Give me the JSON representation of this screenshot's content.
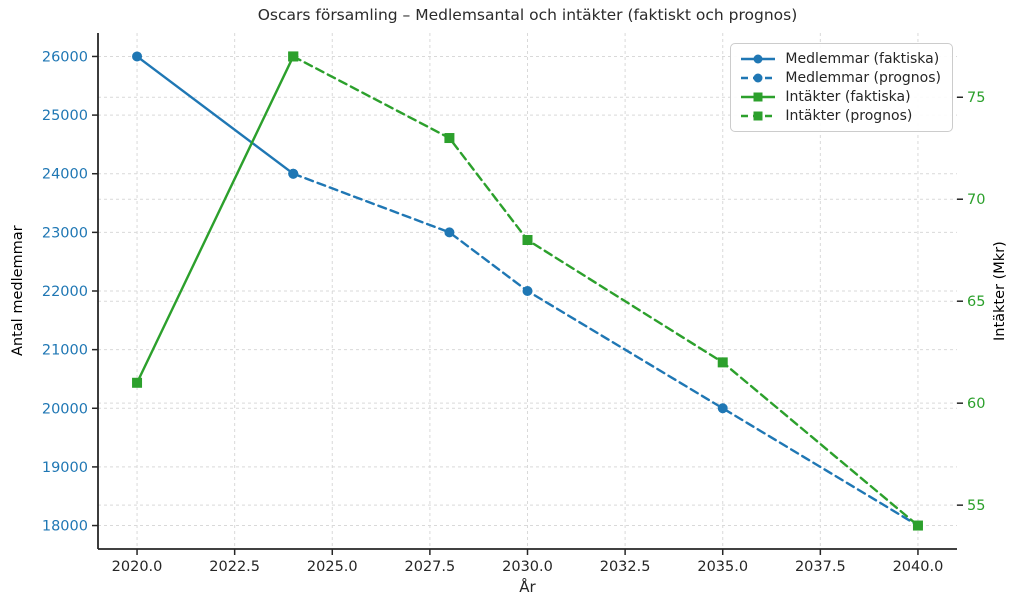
{
  "chart_data": {
    "type": "line",
    "title": "Oscars församling – Medlemsantal och intäkter (faktiskt och prognos)",
    "xlabel": "År",
    "ylabel_left": "Antal medlemmar",
    "ylabel_right": "Intäkter (Mkr)",
    "xlim": [
      2019,
      2041
    ],
    "ylim_left": [
      17600,
      26400
    ],
    "ylim_right": [
      52.85,
      78.15
    ],
    "x_tick_values": [
      2020,
      2022.5,
      2025,
      2027.5,
      2030,
      2032.5,
      2035,
      2037.5,
      2040
    ],
    "x_tick_labels": [
      "2020.0",
      "2022.5",
      "2025.0",
      "2027.5",
      "2030.0",
      "2032.5",
      "2035.0",
      "2037.5",
      "2040.0"
    ],
    "y_ticks_left": [
      18000,
      19000,
      20000,
      21000,
      22000,
      23000,
      24000,
      25000,
      26000
    ],
    "y_ticks_right": [
      55,
      60,
      65,
      70,
      75
    ],
    "grid": true,
    "grid_color": "#d9d9d9",
    "legend_position": "upper right",
    "colors": {
      "members_blue": "#1f77b4",
      "revenue_green": "#2ca02c",
      "x_tick_label": "#262626",
      "spine": "#262626"
    },
    "series": [
      {
        "name": "Medlemmar (faktiska)",
        "axis": "left",
        "color": "#1f77b4",
        "line_style": "solid",
        "marker": "circle",
        "x": [
          2020,
          2024
        ],
        "y": [
          26000,
          24000
        ]
      },
      {
        "name": "Medlemmar (prognos)",
        "axis": "left",
        "color": "#1f77b4",
        "line_style": "dashed",
        "marker": "circle",
        "x": [
          2024,
          2028,
          2030,
          2035,
          2040
        ],
        "y": [
          24000,
          23000,
          22000,
          20000,
          18000
        ]
      },
      {
        "name": "Intäkter (faktiska)",
        "axis": "right",
        "color": "#2ca02c",
        "line_style": "solid",
        "marker": "square",
        "x": [
          2020,
          2024
        ],
        "y": [
          61,
          77
        ]
      },
      {
        "name": "Intäkter (prognos)",
        "axis": "right",
        "color": "#2ca02c",
        "line_style": "dashed",
        "marker": "square",
        "x": [
          2024,
          2028,
          2030,
          2035,
          2040
        ],
        "y": [
          77,
          73,
          68,
          62,
          54
        ]
      }
    ]
  }
}
